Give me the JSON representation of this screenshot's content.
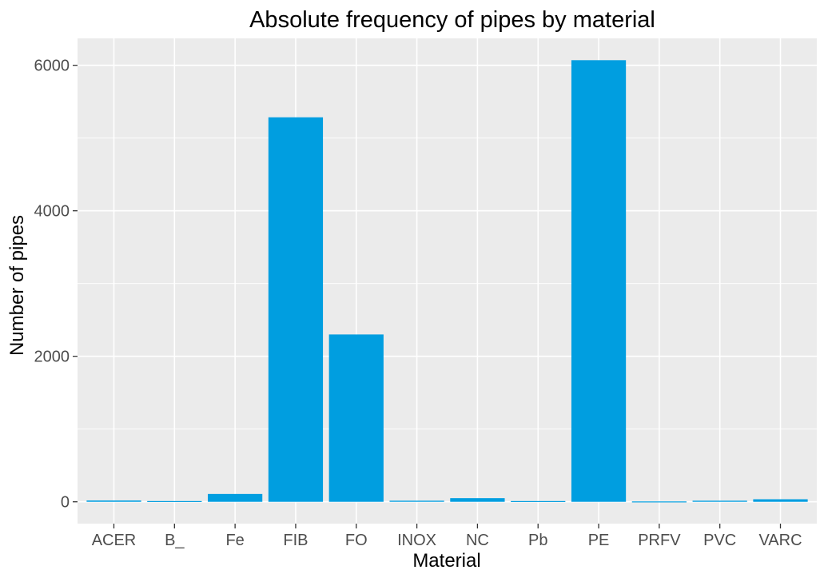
{
  "chart_data": {
    "type": "bar",
    "title": "Absolute frequency of pipes by material",
    "xlabel": "Material",
    "ylabel": "Number of pipes",
    "categories": [
      "ACER",
      "B_",
      "Fe",
      "FIB",
      "FO",
      "INOX",
      "NC",
      "Pb",
      "PE",
      "PRFV",
      "PVC",
      "VARC"
    ],
    "values": [
      18,
      10,
      108,
      5285,
      2300,
      15,
      50,
      10,
      6070,
      5,
      15,
      35
    ],
    "y_ticks": [
      0,
      2000,
      4000,
      6000
    ],
    "y_tick_labels": [
      "0",
      "2000",
      "4000",
      "6000"
    ],
    "ylim": [
      -300,
      6370
    ],
    "grid": true,
    "colors": {
      "bar": "#009ee0",
      "panel_background": "#ebebeb",
      "gridline": "#ffffff",
      "tick_label": "#4d4d4d",
      "tick_mark": "#333333"
    }
  }
}
